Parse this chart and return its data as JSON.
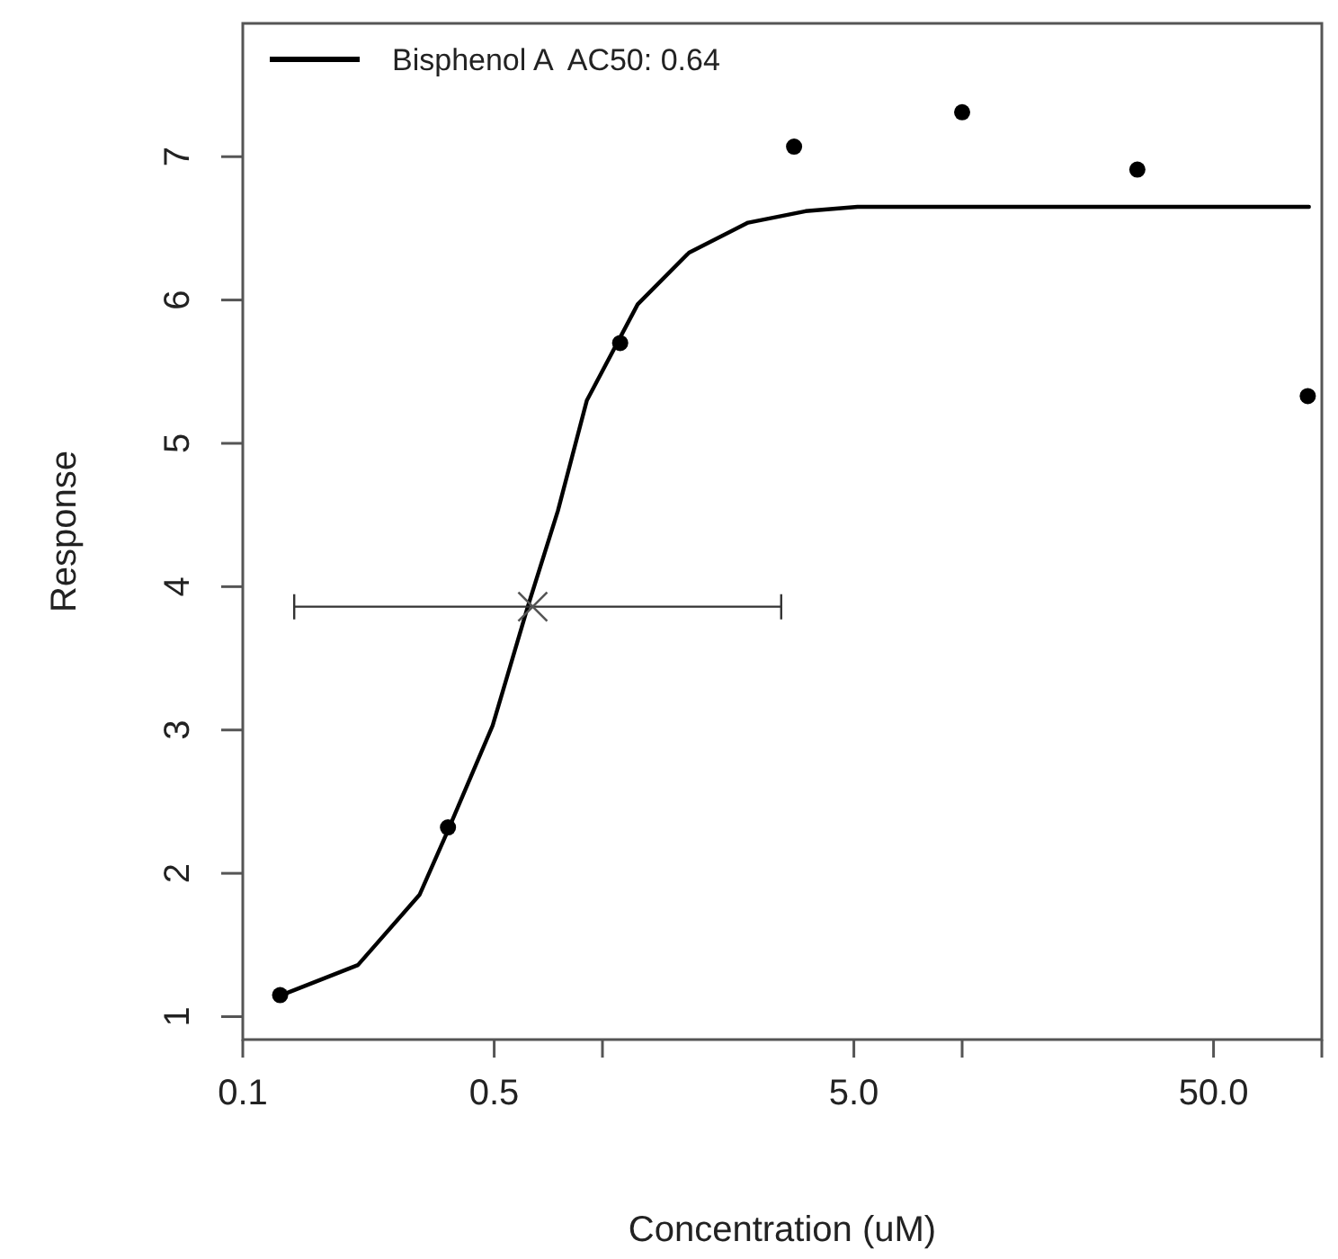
{
  "chart_data": {
    "type": "scatter",
    "xlabel": "Concentration (uM)",
    "ylabel": "Response",
    "log": "x",
    "grid": false,
    "legend": "top left",
    "xlim": [
      0.1,
      100
    ],
    "ylim": [
      0.84,
      7.93
    ],
    "xticks": [
      0.1,
      0.5,
      {
        "value": 1,
        "label": null
      },
      {
        "value": 5,
        "label": "5.0"
      },
      {
        "value": 10,
        "label": null
      },
      {
        "value": 50,
        "label": "50.0"
      },
      {
        "value": 100,
        "label": null
      }
    ],
    "yticks": [
      1,
      2,
      3,
      4,
      5,
      6,
      7
    ],
    "series": [
      {
        "type": "line",
        "name": "Bisphenol A  AC50: 0.64",
        "color": "#000000",
        "marker": "none",
        "line_style": "solid",
        "x": [
          0.128,
          0.209,
          0.31,
          0.372,
          0.495,
          0.62,
          0.752,
          0.905,
          1.253,
          1.74,
          2.54,
          3.67,
          5.12,
          92.1
        ],
        "values": [
          1.15,
          1.36,
          1.85,
          2.3,
          3.03,
          3.86,
          4.53,
          5.3,
          5.97,
          6.33,
          6.54,
          6.62,
          6.65,
          6.65
        ]
      },
      {
        "type": "scatter",
        "color": "#000000",
        "marker": "circle",
        "x": [
          0.127,
          0.372,
          1.12,
          3.41,
          10.0,
          30.7,
          91.4
        ],
        "values": [
          1.15,
          2.32,
          5.7,
          7.07,
          7.31,
          6.91,
          5.33
        ]
      },
      {
        "type": "scatter",
        "color": "#555555",
        "marker": "cross",
        "x": [
          0.64
        ],
        "values": [
          3.86
        ],
        "xerrors": [
          [
            0.139,
            3.14
          ]
        ]
      }
    ]
  }
}
